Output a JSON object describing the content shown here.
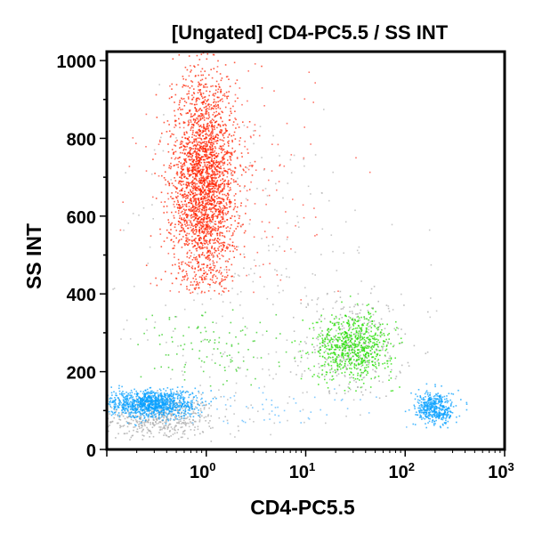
{
  "chart_data": {
    "type": "scatter",
    "title": "[Ungated] CD4-PC5.5 / SS INT",
    "xlabel": "CD4-PC5.5",
    "ylabel": "SS INT",
    "x_scale": "log",
    "xlim": [
      0.1,
      1000
    ],
    "ylim": [
      0,
      1023
    ],
    "x_ticks": [
      {
        "base": "10",
        "exp": "0",
        "value": 1
      },
      {
        "base": "10",
        "exp": "1",
        "value": 10
      },
      {
        "base": "10",
        "exp": "2",
        "value": 100
      },
      {
        "base": "10",
        "exp": "3",
        "value": 1000
      }
    ],
    "y_ticks": [
      "0",
      "200",
      "400",
      "600",
      "800",
      "1000"
    ],
    "grid": false,
    "populations": [
      {
        "color": "#ff2200",
        "x_center": 0.95,
        "x_log_sd": 0.16,
        "y_mean": 680,
        "y_sd": 140,
        "y_min": 400,
        "y_max": 1023,
        "count": 2600
      },
      {
        "color": "#ff4a3a",
        "x_center": 1.5,
        "x_log_sd": 0.45,
        "y_mean": 650,
        "y_sd": 180,
        "y_min": 380,
        "y_max": 1023,
        "count": 260
      },
      {
        "color": "#22dd00",
        "x_center": 30,
        "x_log_sd": 0.2,
        "y_mean": 265,
        "y_sd": 42,
        "y_min": 150,
        "y_max": 400,
        "count": 700
      },
      {
        "color": "#33cc22",
        "x_center": 1.0,
        "x_log_sd": 0.35,
        "y_mean": 260,
        "y_sd": 60,
        "y_min": 160,
        "y_max": 380,
        "count": 120
      },
      {
        "color": "#0aa0ff",
        "x_center": 0.28,
        "x_log_sd": 0.22,
        "y_mean": 118,
        "y_sd": 18,
        "y_min": 60,
        "y_max": 170,
        "count": 1100
      },
      {
        "color": "#0aa0ff",
        "x_center": 200,
        "x_log_sd": 0.1,
        "y_mean": 105,
        "y_sd": 22,
        "y_min": 55,
        "y_max": 170,
        "count": 450
      },
      {
        "color": "#5ab8ff",
        "x_center": 5,
        "x_log_sd": 0.5,
        "y_mean": 110,
        "y_sd": 25,
        "y_min": 50,
        "y_max": 170,
        "count": 60
      },
      {
        "color": "#a8a8a8",
        "x_center": 0.35,
        "x_log_sd": 0.28,
        "y_mean": 80,
        "y_sd": 28,
        "y_min": 20,
        "y_max": 200,
        "count": 500
      },
      {
        "color": "#a8a8a8",
        "x_center": 30,
        "x_log_sd": 0.25,
        "y_mean": 260,
        "y_sd": 70,
        "y_min": 130,
        "y_max": 420,
        "count": 300
      },
      {
        "color": "#b5b5b5",
        "x_center": 3,
        "x_log_sd": 0.8,
        "y_mean": 400,
        "y_sd": 260,
        "y_min": 10,
        "y_max": 1023,
        "count": 300
      }
    ]
  }
}
